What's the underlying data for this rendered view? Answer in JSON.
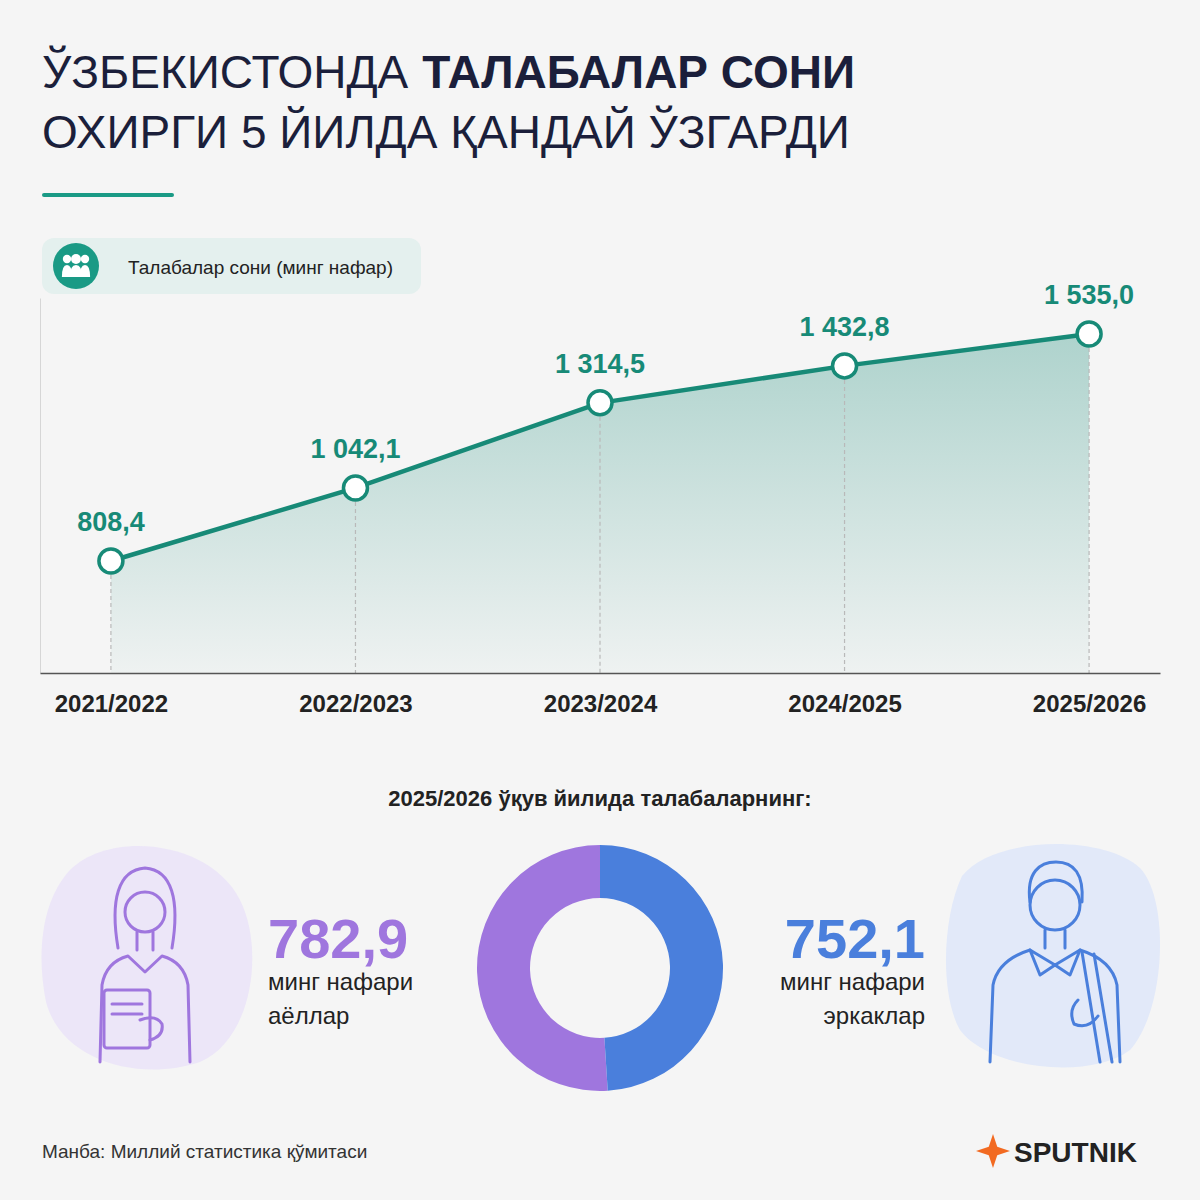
{
  "header": {
    "title": "ЎЗБЕКИСТОНДА",
    "title_bold": "ТАЛАБАЛАР СОНИ",
    "title_line2": "ОХИРГИ 5 ЙИЛДА ҚАНДАЙ ЎЗГАРДИ"
  },
  "chart_data": [
    {
      "type": "line",
      "categories": [
        "2021/2022",
        "2022/2023",
        "2023/2024",
        "2024/2025",
        "2025/2026"
      ],
      "series": [
        {
          "name": "Талабалар сони (минг нафар)",
          "color": "#178a77",
          "values": [
            808.4,
            1042.1,
            1314.5,
            1432.8,
            1535.0
          ],
          "value_labels": [
            "808,4",
            "1 042,1",
            "1 314,5",
            "1 432,8",
            "1 535,0"
          ],
          "marker": "circle",
          "line_style": "solid"
        }
      ],
      "ylim": [
        450,
        1650
      ],
      "yticks": [],
      "grid": false,
      "legend": "top-left",
      "data_labels": true,
      "tick_labels": "x"
    },
    {
      "type": "donut",
      "title": "2025/2026 ўқув йилида талабаларнинг:",
      "categories": [
        "аёллар",
        "эркаклар"
      ],
      "values": [
        782.9,
        752.1
      ],
      "value_labels": [
        "782,9",
        "752,1"
      ],
      "value_unit": "минг нафари",
      "colors": [
        "#9f76de",
        "#4a7fdc"
      ],
      "data_labels": true
    }
  ],
  "footer": {
    "source": "Манба: Миллий статистика қўмитаси",
    "brand": "SPUTNIK"
  }
}
